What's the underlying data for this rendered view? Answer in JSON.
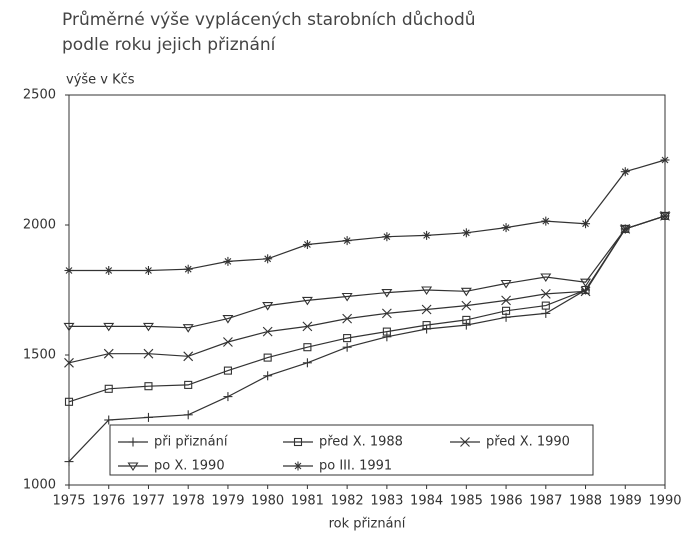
{
  "chart_data": {
    "type": "line",
    "title": "Průměrné výše vyplácených starobních důchodů",
    "subtitle": "podle roku jejich přiznání",
    "y_label": "výše v Kčs",
    "x_label": "rok přiznání",
    "x": [
      1975,
      1976,
      1977,
      1978,
      1979,
      1980,
      1981,
      1982,
      1983,
      1984,
      1985,
      1986,
      1987,
      1988,
      1989,
      1990
    ],
    "xlim": [
      1975,
      1990
    ],
    "xticks": [
      1975,
      1976,
      1977,
      1978,
      1979,
      1980,
      1981,
      1982,
      1983,
      1984,
      1985,
      1986,
      1987,
      1988,
      1989,
      1990
    ],
    "ylim": [
      1000,
      2500
    ],
    "yticks": [
      1000,
      1500,
      2000,
      2500
    ],
    "grid": false,
    "legend": "bottom",
    "series": [
      {
        "name": "při přiznání",
        "color": "#333333",
        "marker": "plus",
        "values": [
          1090,
          1250,
          1260,
          1270,
          1340,
          1420,
          1470,
          1530,
          1570,
          1600,
          1615,
          1645,
          1660,
          1750,
          1985,
          2035
        ]
      },
      {
        "name": "před X. 1988",
        "color": "#333333",
        "marker": "square",
        "values": [
          1320,
          1370,
          1380,
          1385,
          1440,
          1490,
          1530,
          1565,
          1590,
          1615,
          1635,
          1670,
          1690,
          1750,
          1985,
          2035
        ]
      },
      {
        "name": "před X. 1990",
        "color": "#333333",
        "marker": "cross",
        "values": [
          1470,
          1505,
          1505,
          1495,
          1550,
          1590,
          1610,
          1640,
          1660,
          1675,
          1690,
          1710,
          1735,
          1745,
          1985,
          2035
        ]
      },
      {
        "name": "po X. 1990",
        "color": "#333333",
        "marker": "triangle",
        "values": [
          1610,
          1610,
          1610,
          1605,
          1640,
          1690,
          1710,
          1725,
          1740,
          1750,
          1745,
          1775,
          1800,
          1780,
          1985,
          2035
        ]
      },
      {
        "name": "po III. 1991",
        "color": "#333333",
        "marker": "star",
        "values": [
          1825,
          1825,
          1825,
          1830,
          1860,
          1870,
          1925,
          1940,
          1955,
          1960,
          1970,
          1990,
          2015,
          2005,
          2205,
          2250
        ]
      }
    ]
  }
}
